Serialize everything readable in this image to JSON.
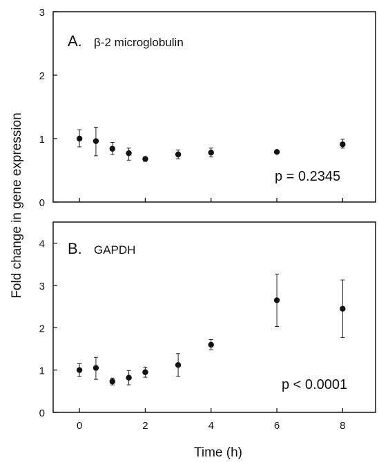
{
  "figure": {
    "ylabel": "Fold change in gene expression",
    "xlabel": "Time (h)"
  },
  "chart_data": [
    {
      "type": "scatter",
      "panel": "A.",
      "title": "β-2 microglobulin",
      "annotation": "p = 0.2345",
      "xlabel": "",
      "ylabel": "Fold change in gene expression",
      "xlim": [
        -0.8,
        9.0
      ],
      "ylim": [
        0,
        3
      ],
      "yticks": [
        0,
        1,
        2,
        3
      ],
      "xticks": [],
      "grid": false,
      "series": [
        {
          "x": [
            0,
            0.5,
            1,
            1.5,
            2,
            3,
            4,
            6,
            8
          ],
          "y": [
            1.0,
            0.96,
            0.84,
            0.77,
            0.68,
            0.75,
            0.78,
            0.79,
            0.91
          ],
          "yerr_low": [
            0.13,
            0.23,
            0.09,
            0.11,
            0.04,
            0.07,
            0.07,
            0.02,
            0.06
          ],
          "yerr_high": [
            0.14,
            0.22,
            0.1,
            0.08,
            0.03,
            0.07,
            0.07,
            0.02,
            0.08
          ]
        }
      ]
    },
    {
      "type": "scatter",
      "panel": "B.",
      "title": "GAPDH",
      "annotation": "p < 0.0001",
      "xlabel": "Time (h)",
      "ylabel": "Fold change in gene expression",
      "xlim": [
        -0.8,
        9.0
      ],
      "ylim": [
        0,
        4.5
      ],
      "yticks": [
        0,
        1,
        2,
        3,
        4
      ],
      "xticks": [
        0,
        2,
        4,
        6,
        8
      ],
      "grid": false,
      "series": [
        {
          "x": [
            0,
            0.5,
            1,
            1.5,
            2,
            3,
            4,
            6,
            8
          ],
          "y": [
            1.0,
            1.05,
            0.73,
            0.82,
            0.95,
            1.12,
            1.6,
            2.65,
            2.45
          ],
          "yerr_low": [
            0.15,
            0.27,
            0.08,
            0.17,
            0.12,
            0.27,
            0.12,
            0.62,
            0.68
          ],
          "yerr_high": [
            0.15,
            0.25,
            0.08,
            0.17,
            0.12,
            0.27,
            0.12,
            0.62,
            0.68
          ]
        }
      ]
    }
  ]
}
